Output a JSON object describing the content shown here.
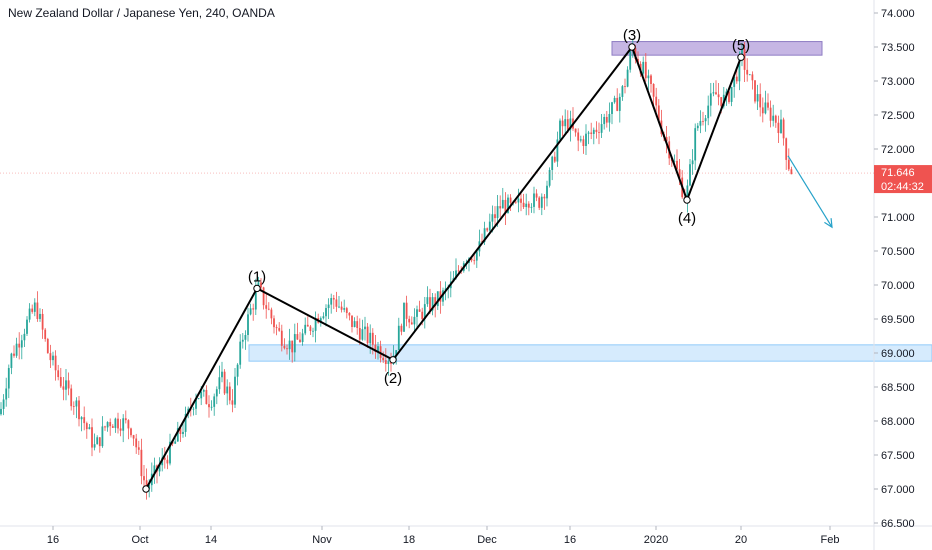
{
  "header": {
    "title": "New Zealand Dollar / Japanese Yen, 240, OANDA"
  },
  "colors": {
    "up": "#26a69a",
    "down": "#ef5350",
    "resistance": "#b39ddb",
    "support": "#bbdefb",
    "arrow": "#26a2c9",
    "price_tag": "#ef5350"
  },
  "chart_data": {
    "type": "candlestick",
    "title": "New Zealand Dollar / Japanese Yen, 240, OANDA",
    "x_ticks": [
      "16",
      "Oct",
      "14",
      "Nov",
      "18",
      "Dec",
      "16",
      "2020",
      "20",
      "Feb"
    ],
    "y_ticks": [
      "74.000",
      "73.500",
      "73.000",
      "72.500",
      "72.000",
      "71.500",
      "71.000",
      "70.500",
      "70.000",
      "69.500",
      "69.000",
      "68.500",
      "68.000",
      "67.500",
      "67.000",
      "66.500"
    ],
    "ylim": [
      66.5,
      74.0
    ],
    "grid": false,
    "current_price": "71.646",
    "countdown": "02:44:32",
    "price_path": [
      [
        0,
        68.1
      ],
      [
        10,
        68.9
      ],
      [
        22,
        69.3
      ],
      [
        36,
        69.7
      ],
      [
        48,
        69.0
      ],
      [
        60,
        68.6
      ],
      [
        78,
        68.2
      ],
      [
        95,
        67.6
      ],
      [
        108,
        68.0
      ],
      [
        120,
        68.0
      ],
      [
        132,
        67.9
      ],
      [
        146,
        67.0
      ],
      [
        158,
        67.3
      ],
      [
        172,
        67.6
      ],
      [
        186,
        68.0
      ],
      [
        196,
        68.4
      ],
      [
        210,
        68.3
      ],
      [
        222,
        68.6
      ],
      [
        232,
        68.3
      ],
      [
        242,
        69.2
      ],
      [
        250,
        69.6
      ],
      [
        258,
        69.95
      ],
      [
        266,
        69.7
      ],
      [
        278,
        69.3
      ],
      [
        292,
        69.1
      ],
      [
        306,
        69.3
      ],
      [
        320,
        69.6
      ],
      [
        334,
        69.8
      ],
      [
        348,
        69.5
      ],
      [
        362,
        69.3
      ],
      [
        376,
        69.1
      ],
      [
        392,
        68.9
      ],
      [
        404,
        69.6
      ],
      [
        416,
        69.5
      ],
      [
        428,
        69.7
      ],
      [
        440,
        69.8
      ],
      [
        452,
        70.0
      ],
      [
        464,
        70.4
      ],
      [
        478,
        70.5
      ],
      [
        490,
        70.9
      ],
      [
        502,
        71.2
      ],
      [
        514,
        71.1
      ],
      [
        526,
        71.3
      ],
      [
        538,
        71.2
      ],
      [
        550,
        71.6
      ],
      [
        560,
        72.3
      ],
      [
        568,
        72.4
      ],
      [
        578,
        72.1
      ],
      [
        590,
        72.2
      ],
      [
        602,
        72.4
      ],
      [
        614,
        72.6
      ],
      [
        624,
        72.9
      ],
      [
        632,
        73.5
      ],
      [
        642,
        73.2
      ],
      [
        652,
        72.8
      ],
      [
        662,
        72.3
      ],
      [
        674,
        71.8
      ],
      [
        686,
        71.25
      ],
      [
        696,
        72.3
      ],
      [
        706,
        72.6
      ],
      [
        716,
        72.8
      ],
      [
        726,
        72.7
      ],
      [
        734,
        73.0
      ],
      [
        742,
        73.35
      ],
      [
        752,
        72.9
      ],
      [
        762,
        72.6
      ],
      [
        772,
        72.5
      ],
      [
        782,
        72.3
      ],
      [
        788,
        71.8
      ],
      [
        794,
        71.6
      ]
    ],
    "waves": [
      {
        "label": "(1)",
        "x": 257,
        "price": 69.95
      },
      {
        "label": "(2)",
        "x": 393,
        "price": 68.9
      },
      {
        "label": "(3)",
        "x": 632,
        "price": 73.5
      },
      {
        "label": "(4)",
        "x": 687,
        "price": 71.25
      },
      {
        "label": "(5)",
        "x": 741,
        "price": 73.35
      }
    ],
    "wave_start": {
      "x": 146,
      "price": 67.0
    },
    "zones": [
      {
        "name": "resistance",
        "x0": 612,
        "x1": 822,
        "top": 73.58,
        "bottom": 73.38
      },
      {
        "name": "support",
        "x0": 249,
        "x1": 932,
        "top": 69.12,
        "bottom": 68.88
      }
    ],
    "projection": {
      "from": {
        "x": 788,
        "price": 71.9
      },
      "to": {
        "x": 832,
        "price": 70.85
      }
    }
  }
}
